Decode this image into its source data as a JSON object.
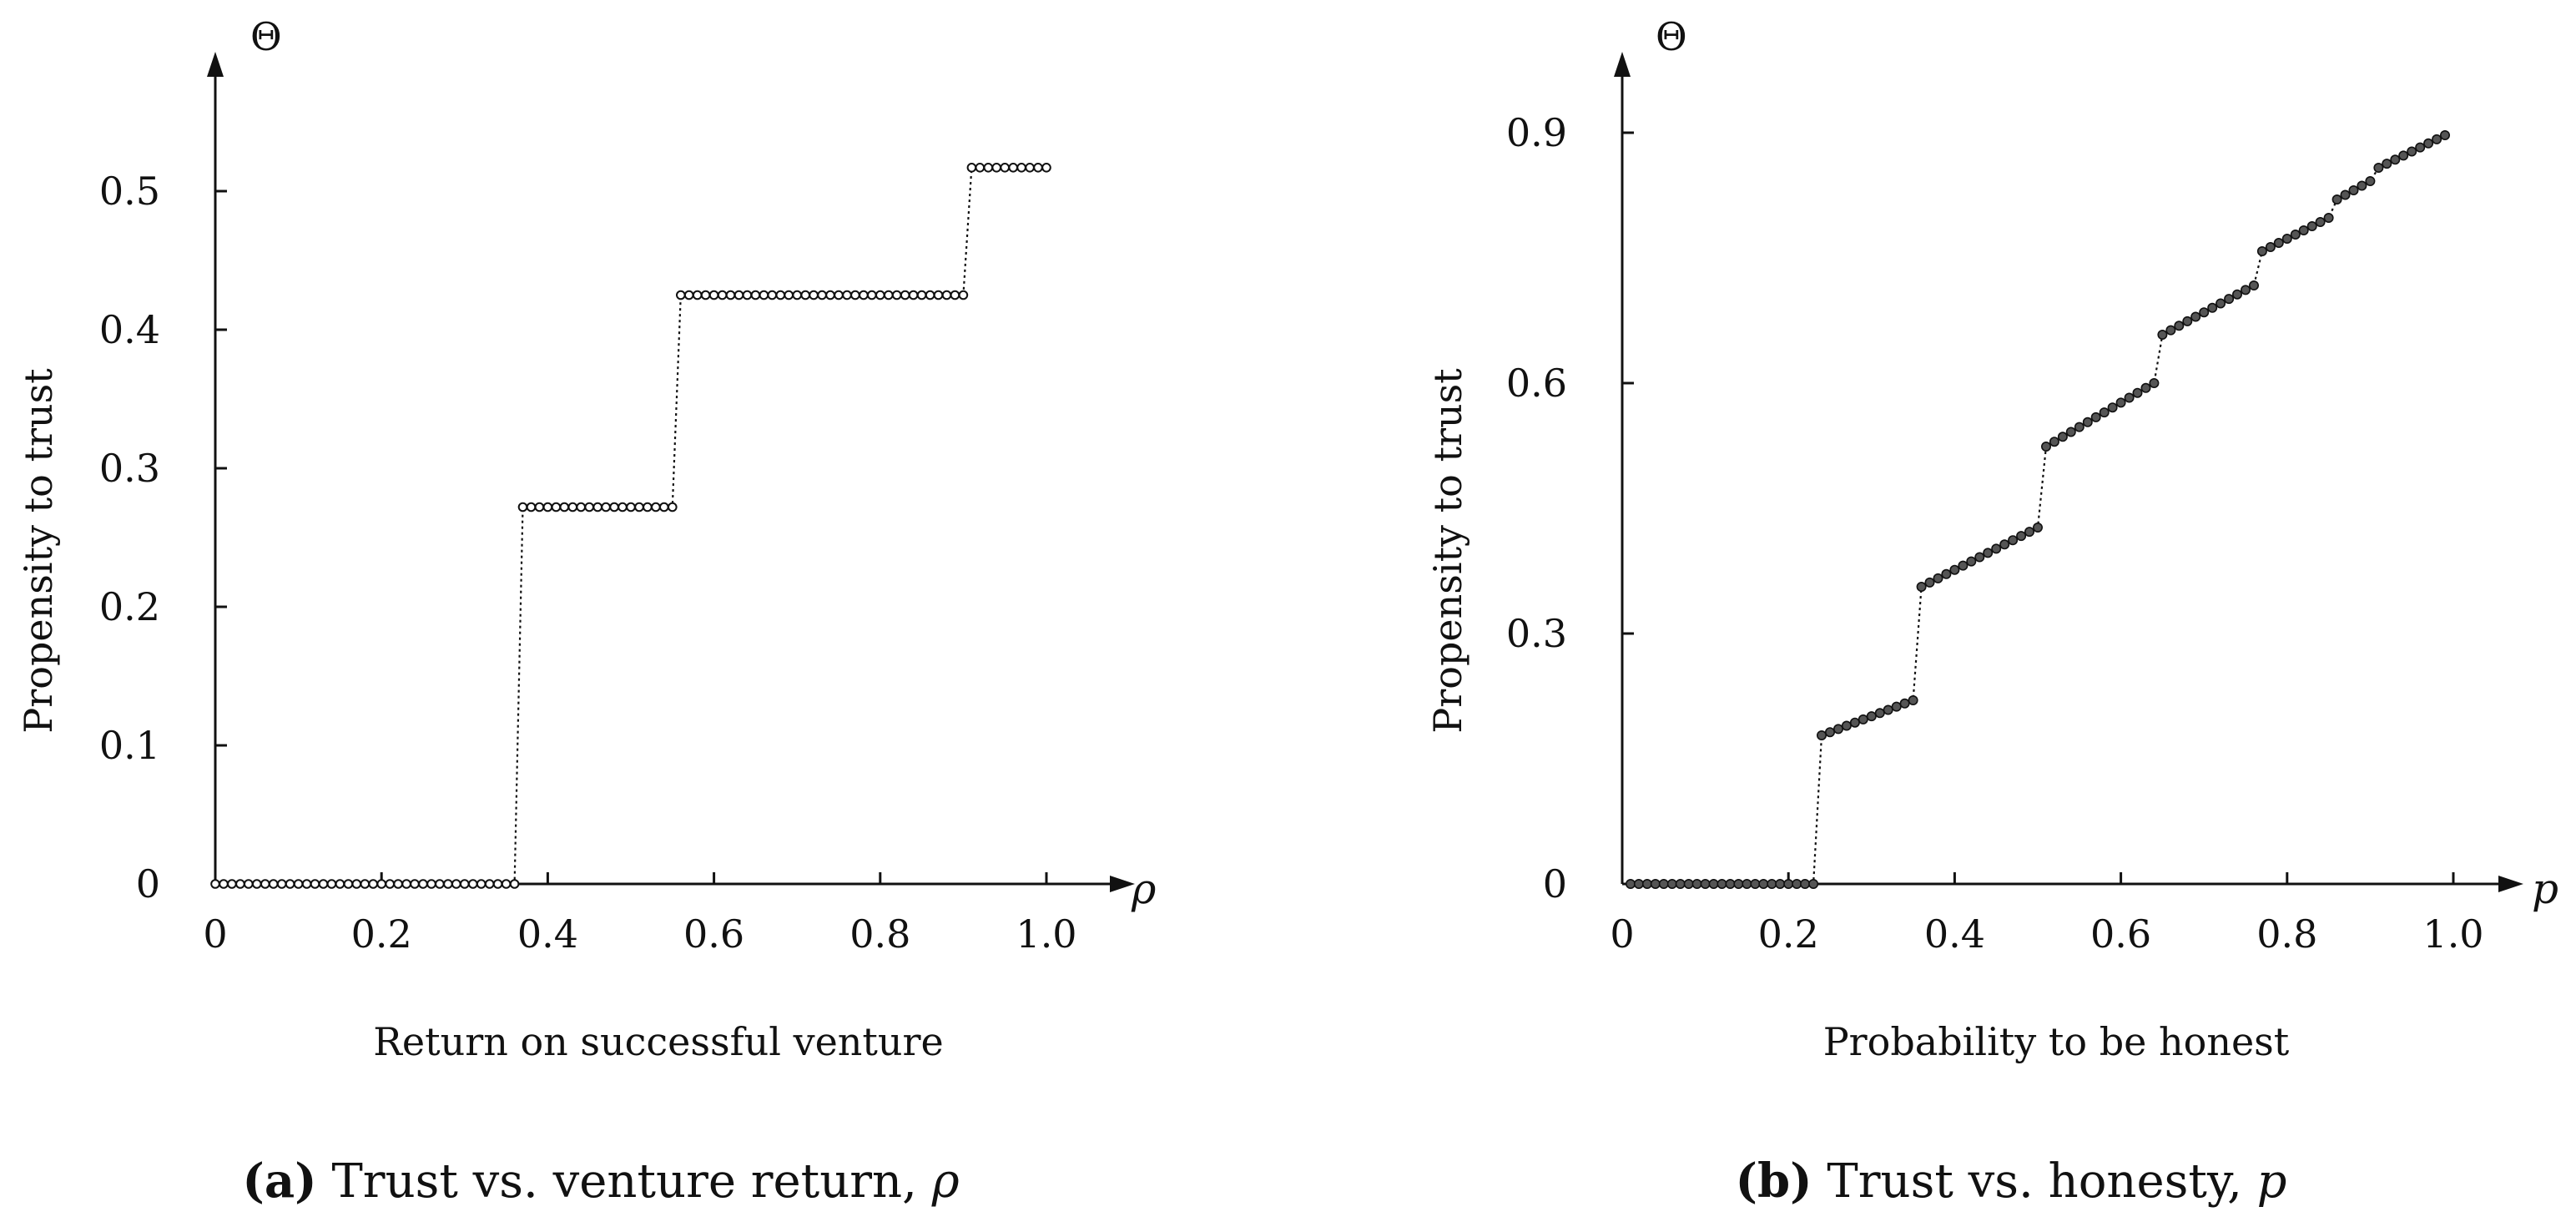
{
  "chart_data": [
    {
      "type": "scatter",
      "panel_tag": "(a)",
      "caption": "Trust vs. venture return, ",
      "caption_var": "ρ",
      "xlabel": "Return on successful venture",
      "ylabel": "Propensity to trust",
      "x_symbol": "ρ",
      "y_symbol": "Θ",
      "xlim": [
        0,
        1.1
      ],
      "ylim": [
        0,
        0.6
      ],
      "xticks": [
        0,
        0.2,
        0.4,
        0.6,
        0.8,
        1.0
      ],
      "xtick_labels": [
        "0",
        "0.2",
        "0.4",
        "0.6",
        "0.8",
        "1.0"
      ],
      "yticks": [
        0,
        0.1,
        0.2,
        0.3,
        0.4,
        0.5
      ],
      "ytick_labels": [
        "0",
        "0.1",
        "0.2",
        "0.3",
        "0.4",
        "0.5"
      ],
      "marker": "hollow-circle",
      "connect_style": "dotted",
      "segments": [
        {
          "x_start": 0.0,
          "x_end": 0.36,
          "y_start": 0.0,
          "y_end": 0.0
        },
        {
          "x_start": 0.37,
          "x_end": 0.55,
          "y_start": 0.272,
          "y_end": 0.272
        },
        {
          "x_start": 0.56,
          "x_end": 0.9,
          "y_start": 0.425,
          "y_end": 0.425
        },
        {
          "x_start": 0.91,
          "x_end": 1.0,
          "y_start": 0.517,
          "y_end": 0.517
        }
      ],
      "x_step": 0.01
    },
    {
      "type": "scatter",
      "panel_tag": "(b)",
      "caption": "Trust vs. honesty, ",
      "caption_var": "p",
      "xlabel": "Probability to be honest",
      "ylabel": "Propensity to trust",
      "x_symbol": "p",
      "y_symbol": "Θ",
      "xlim": [
        0,
        1.08
      ],
      "ylim": [
        0,
        1.0
      ],
      "xticks": [
        0,
        0.2,
        0.4,
        0.6,
        0.8,
        1.0
      ],
      "xtick_labels": [
        "0",
        "0.2",
        "0.4",
        "0.6",
        "0.8",
        "1.0"
      ],
      "yticks": [
        0,
        0.3,
        0.6,
        0.9
      ],
      "ytick_labels": [
        "0",
        "0.3",
        "0.6",
        "0.9"
      ],
      "marker": "filled-circle",
      "connect_style": "dotted",
      "segments": [
        {
          "x_start": 0.01,
          "x_end": 0.23,
          "y_start": 0.0,
          "y_end": 0.0
        },
        {
          "x_start": 0.24,
          "x_end": 0.35,
          "y_start": 0.178,
          "y_end": 0.22
        },
        {
          "x_start": 0.36,
          "x_end": 0.5,
          "y_start": 0.356,
          "y_end": 0.427
        },
        {
          "x_start": 0.51,
          "x_end": 0.64,
          "y_start": 0.524,
          "y_end": 0.6
        },
        {
          "x_start": 0.65,
          "x_end": 0.76,
          "y_start": 0.658,
          "y_end": 0.717
        },
        {
          "x_start": 0.77,
          "x_end": 0.85,
          "y_start": 0.758,
          "y_end": 0.798
        },
        {
          "x_start": 0.86,
          "x_end": 0.9,
          "y_start": 0.82,
          "y_end": 0.842
        },
        {
          "x_start": 0.91,
          "x_end": 0.99,
          "y_start": 0.858,
          "y_end": 0.897
        }
      ],
      "x_step": 0.01
    }
  ]
}
